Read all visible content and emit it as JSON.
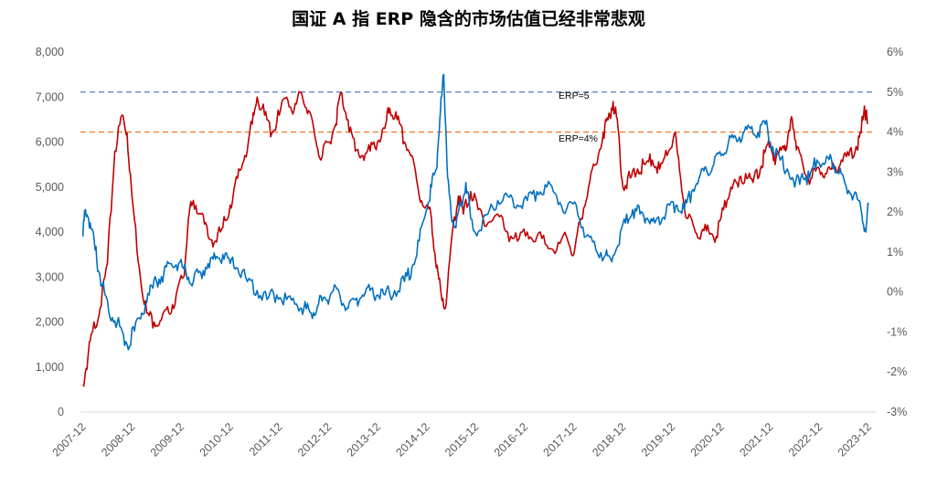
{
  "chart_data": {
    "type": "line",
    "title": "国证 A 指 ERP 隐含的市场估值已经非常悲观",
    "xlabel": "",
    "ylabel": "",
    "x_ticks": [
      "2007-12",
      "2008-12",
      "2009-12",
      "2010-12",
      "2011-12",
      "2012-12",
      "2013-12",
      "2014-12",
      "2015-12",
      "2016-12",
      "2017-12",
      "2018-12",
      "2019-12",
      "2020-12",
      "2021-12",
      "2022-12",
      "2023-12"
    ],
    "x_range": [
      2007.9,
      2024.1
    ],
    "y_left": {
      "range": [
        0,
        8000
      ],
      "ticks": [
        "0",
        "1,000",
        "2,000",
        "3,000",
        "4,000",
        "5,000",
        "6,000",
        "7,000",
        "8,000"
      ]
    },
    "y_right": {
      "range": [
        -0.03,
        0.06
      ],
      "ticks": [
        "-3%",
        "-2%",
        "-1%",
        "0%",
        "1%",
        "2%",
        "3%",
        "4%",
        "5%",
        "6%"
      ]
    },
    "grid": false,
    "reference_lines": [
      {
        "label": "ERP=5",
        "axis": "right",
        "value": 0.05,
        "color": "#4f7fc0"
      },
      {
        "label": "ERP=4%",
        "axis": "right",
        "value": 0.04,
        "color": "#ed7d31"
      }
    ],
    "series": [
      {
        "axis": "left",
        "color": "#c00000",
        "points": [
          [
            2007.95,
            600
          ],
          [
            2008.05,
            1200
          ],
          [
            2008.15,
            1800
          ],
          [
            2008.3,
            2300
          ],
          [
            2008.45,
            3300
          ],
          [
            2008.6,
            5800
          ],
          [
            2008.75,
            6600
          ],
          [
            2008.85,
            6200
          ],
          [
            2008.95,
            4800
          ],
          [
            2009.1,
            3200
          ],
          [
            2009.25,
            2200
          ],
          [
            2009.4,
            2000
          ],
          [
            2009.55,
            2050
          ],
          [
            2009.7,
            2200
          ],
          [
            2009.85,
            2600
          ],
          [
            2010.0,
            3000
          ],
          [
            2010.1,
            4300
          ],
          [
            2010.2,
            4700
          ],
          [
            2010.35,
            4400
          ],
          [
            2010.5,
            3900
          ],
          [
            2010.65,
            3800
          ],
          [
            2010.8,
            4100
          ],
          [
            2010.95,
            4600
          ],
          [
            2011.1,
            5200
          ],
          [
            2011.25,
            5700
          ],
          [
            2011.4,
            6400
          ],
          [
            2011.5,
            7000
          ],
          [
            2011.65,
            6600
          ],
          [
            2011.8,
            6200
          ],
          [
            2011.95,
            6600
          ],
          [
            2012.1,
            7000
          ],
          [
            2012.25,
            6700
          ],
          [
            2012.4,
            7100
          ],
          [
            2012.55,
            6700
          ],
          [
            2012.7,
            6000
          ],
          [
            2012.8,
            5600
          ],
          [
            2012.95,
            6000
          ],
          [
            2013.1,
            6400
          ],
          [
            2013.2,
            7100
          ],
          [
            2013.35,
            6500
          ],
          [
            2013.5,
            5800
          ],
          [
            2013.65,
            5700
          ],
          [
            2013.8,
            5800
          ],
          [
            2013.95,
            6000
          ],
          [
            2014.1,
            6300
          ],
          [
            2014.2,
            6750
          ],
          [
            2014.35,
            6500
          ],
          [
            2014.5,
            6000
          ],
          [
            2014.65,
            5700
          ],
          [
            2014.8,
            4800
          ],
          [
            2014.95,
            4600
          ],
          [
            2015.05,
            4300
          ],
          [
            2015.15,
            3200
          ],
          [
            2015.25,
            2600
          ],
          [
            2015.35,
            2400
          ],
          [
            2015.5,
            4200
          ],
          [
            2015.6,
            4800
          ],
          [
            2015.7,
            4400
          ],
          [
            2015.85,
            4900
          ],
          [
            2016.0,
            4500
          ],
          [
            2016.2,
            4200
          ],
          [
            2016.4,
            4400
          ],
          [
            2016.6,
            4000
          ],
          [
            2016.8,
            3800
          ],
          [
            2017.0,
            4000
          ],
          [
            2017.2,
            3900
          ],
          [
            2017.4,
            3700
          ],
          [
            2017.6,
            3600
          ],
          [
            2017.8,
            3900
          ],
          [
            2017.95,
            3500
          ],
          [
            2018.1,
            4300
          ],
          [
            2018.25,
            5000
          ],
          [
            2018.4,
            5500
          ],
          [
            2018.55,
            6200
          ],
          [
            2018.65,
            6500
          ],
          [
            2018.75,
            6900
          ],
          [
            2018.85,
            6300
          ],
          [
            2018.95,
            5000
          ],
          [
            2019.1,
            5200
          ],
          [
            2019.25,
            5400
          ],
          [
            2019.4,
            5500
          ],
          [
            2019.55,
            5600
          ],
          [
            2019.7,
            5400
          ],
          [
            2019.85,
            5700
          ],
          [
            2020.0,
            6200
          ],
          [
            2020.1,
            5400
          ],
          [
            2020.25,
            4300
          ],
          [
            2020.4,
            4100
          ],
          [
            2020.55,
            4000
          ],
          [
            2020.7,
            4000
          ],
          [
            2020.85,
            3900
          ],
          [
            2021.0,
            4500
          ],
          [
            2021.15,
            5000
          ],
          [
            2021.3,
            5000
          ],
          [
            2021.45,
            5300
          ],
          [
            2021.6,
            5100
          ],
          [
            2021.75,
            5400
          ],
          [
            2021.85,
            5800
          ],
          [
            2021.95,
            6000
          ],
          [
            2022.05,
            5500
          ],
          [
            2022.2,
            5900
          ],
          [
            2022.3,
            6000
          ],
          [
            2022.4,
            6500
          ],
          [
            2022.5,
            5900
          ],
          [
            2022.65,
            5300
          ],
          [
            2022.8,
            5200
          ],
          [
            2022.95,
            5400
          ],
          [
            2023.1,
            5300
          ],
          [
            2023.25,
            5400
          ],
          [
            2023.4,
            5600
          ],
          [
            2023.55,
            5700
          ],
          [
            2023.7,
            5900
          ],
          [
            2023.8,
            6200
          ],
          [
            2023.87,
            6800
          ],
          [
            2023.93,
            6400
          ]
        ]
      },
      {
        "axis": "left",
        "color": "#0070c0",
        "points": [
          [
            2007.95,
            3900
          ],
          [
            2008.0,
            4500
          ],
          [
            2008.1,
            4200
          ],
          [
            2008.2,
            3600
          ],
          [
            2008.3,
            3000
          ],
          [
            2008.4,
            2600
          ],
          [
            2008.55,
            2100
          ],
          [
            2008.7,
            1900
          ],
          [
            2008.85,
            1500
          ],
          [
            2009.0,
            1800
          ],
          [
            2009.15,
            2200
          ],
          [
            2009.3,
            2600
          ],
          [
            2009.45,
            2900
          ],
          [
            2009.6,
            3100
          ],
          [
            2009.75,
            3300
          ],
          [
            2009.9,
            3300
          ],
          [
            2010.05,
            3100
          ],
          [
            2010.2,
            2900
          ],
          [
            2010.35,
            3100
          ],
          [
            2010.5,
            3300
          ],
          [
            2010.65,
            3400
          ],
          [
            2010.8,
            3500
          ],
          [
            2010.95,
            3300
          ],
          [
            2011.1,
            3200
          ],
          [
            2011.3,
            2900
          ],
          [
            2011.5,
            2700
          ],
          [
            2011.7,
            2500
          ],
          [
            2011.9,
            2600
          ],
          [
            2012.1,
            2500
          ],
          [
            2012.3,
            2400
          ],
          [
            2012.45,
            2300
          ],
          [
            2012.6,
            2200
          ],
          [
            2012.75,
            2400
          ],
          [
            2012.9,
            2500
          ],
          [
            2013.05,
            2700
          ],
          [
            2013.2,
            2500
          ],
          [
            2013.35,
            2300
          ],
          [
            2013.5,
            2500
          ],
          [
            2013.65,
            2600
          ],
          [
            2013.8,
            2700
          ],
          [
            2013.95,
            2600
          ],
          [
            2014.1,
            2600
          ],
          [
            2014.3,
            2700
          ],
          [
            2014.5,
            2900
          ],
          [
            2014.65,
            3200
          ],
          [
            2014.8,
            3800
          ],
          [
            2014.95,
            4500
          ],
          [
            2015.05,
            5000
          ],
          [
            2015.15,
            5400
          ],
          [
            2015.22,
            6500
          ],
          [
            2015.3,
            7500
          ],
          [
            2015.38,
            5200
          ],
          [
            2015.45,
            4400
          ],
          [
            2015.55,
            4100
          ],
          [
            2015.65,
            4600
          ],
          [
            2015.75,
            5100
          ],
          [
            2015.85,
            4300
          ],
          [
            2016.0,
            4000
          ],
          [
            2016.2,
            4400
          ],
          [
            2016.4,
            4700
          ],
          [
            2016.6,
            4800
          ],
          [
            2016.8,
            4600
          ],
          [
            2017.0,
            4700
          ],
          [
            2017.2,
            4900
          ],
          [
            2017.4,
            5000
          ],
          [
            2017.6,
            4800
          ],
          [
            2017.8,
            4500
          ],
          [
            2018.0,
            4600
          ],
          [
            2018.2,
            3900
          ],
          [
            2018.4,
            3600
          ],
          [
            2018.6,
            3500
          ],
          [
            2018.7,
            3400
          ],
          [
            2018.85,
            3700
          ],
          [
            2019.0,
            4200
          ],
          [
            2019.15,
            4500
          ],
          [
            2019.3,
            4400
          ],
          [
            2019.45,
            4300
          ],
          [
            2019.6,
            4200
          ],
          [
            2019.75,
            4300
          ],
          [
            2019.9,
            4600
          ],
          [
            2020.05,
            4600
          ],
          [
            2020.2,
            4500
          ],
          [
            2020.35,
            4900
          ],
          [
            2020.5,
            5200
          ],
          [
            2020.65,
            5400
          ],
          [
            2020.8,
            5500
          ],
          [
            2020.95,
            5700
          ],
          [
            2021.1,
            6000
          ],
          [
            2021.25,
            6100
          ],
          [
            2021.4,
            6200
          ],
          [
            2021.55,
            6300
          ],
          [
            2021.7,
            6200
          ],
          [
            2021.85,
            6400
          ],
          [
            2022.0,
            5900
          ],
          [
            2022.15,
            5600
          ],
          [
            2022.3,
            5400
          ],
          [
            2022.45,
            5000
          ],
          [
            2022.6,
            5300
          ],
          [
            2022.75,
            5200
          ],
          [
            2022.9,
            5600
          ],
          [
            2023.05,
            5500
          ],
          [
            2023.2,
            5600
          ],
          [
            2023.35,
            5300
          ],
          [
            2023.5,
            5000
          ],
          [
            2023.65,
            4800
          ],
          [
            2023.8,
            4500
          ],
          [
            2023.9,
            4000
          ],
          [
            2023.95,
            4600
          ]
        ]
      }
    ]
  }
}
